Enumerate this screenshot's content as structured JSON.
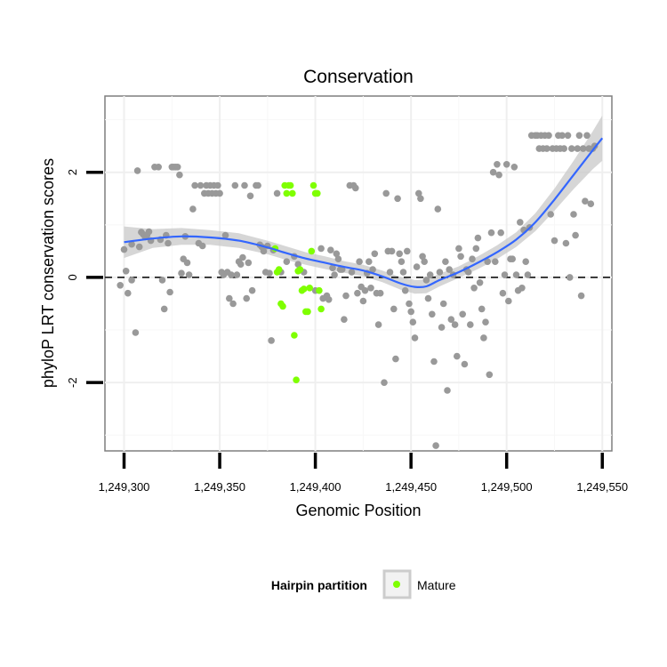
{
  "chart_data": {
    "type": "scatter",
    "title": "Conservation",
    "xlabel": "Genomic Position",
    "ylabel": "phyloP LRT conservation scores",
    "xlim": [
      1249290,
      1249555
    ],
    "ylim": [
      -3.3,
      3.45
    ],
    "x_ticks": [
      1249300,
      1249350,
      1249400,
      1249450,
      1249500,
      1249550
    ],
    "x_tick_labels": [
      "1,249,300",
      "1,249,350",
      "1,249,400",
      "1,249,450",
      "1,249,500",
      "1,249,550"
    ],
    "y_ticks": [
      -2,
      0,
      2
    ],
    "y_tick_labels": [
      "-2",
      "0",
      "2"
    ],
    "reference_line": {
      "y": 0,
      "style": "dashed"
    },
    "legend": {
      "title": "Hairpin partition",
      "position": "bottom",
      "entries": [
        {
          "label": "Mature",
          "color": "#7fff00"
        }
      ]
    },
    "colors": {
      "other": "#999999",
      "mature": "#7fff00",
      "smooth": "#3366ff",
      "band": "#c8c8c8"
    },
    "series": [
      {
        "name": "Other",
        "points": [
          [
            1249298,
            -0.15
          ],
          [
            1249300,
            0.53
          ],
          [
            1249301,
            0.12
          ],
          [
            1249302,
            -0.3
          ],
          [
            1249304,
            0.63
          ],
          [
            1249304,
            -0.05
          ],
          [
            1249306,
            -1.05
          ],
          [
            1249307,
            2.03
          ],
          [
            1249308,
            0.58
          ],
          [
            1249309,
            0.86
          ],
          [
            1249310,
            0.82
          ],
          [
            1249311,
            0.77
          ],
          [
            1249312,
            0.8
          ],
          [
            1249313,
            0.87
          ],
          [
            1249314,
            0.7
          ],
          [
            1249316,
            2.1
          ],
          [
            1249318,
            2.1
          ],
          [
            1249319,
            0.72
          ],
          [
            1249320,
            -0.05
          ],
          [
            1249321,
            -0.6
          ],
          [
            1249322,
            0.8
          ],
          [
            1249323,
            0.65
          ],
          [
            1249324,
            -0.28
          ],
          [
            1249325,
            2.1
          ],
          [
            1249326,
            2.1
          ],
          [
            1249327,
            2.1
          ],
          [
            1249328,
            2.1
          ],
          [
            1249329,
            1.95
          ],
          [
            1249330,
            0.08
          ],
          [
            1249331,
            0.35
          ],
          [
            1249332,
            0.78
          ],
          [
            1249333,
            0.28
          ],
          [
            1249334,
            0.05
          ],
          [
            1249336,
            1.3
          ],
          [
            1249337,
            1.75
          ],
          [
            1249339,
            0.65
          ],
          [
            1249340,
            1.75
          ],
          [
            1249341,
            0.6
          ],
          [
            1249342,
            1.6
          ],
          [
            1249343,
            1.75
          ],
          [
            1249344,
            1.6
          ],
          [
            1249345,
            1.75
          ],
          [
            1249346,
            1.6
          ],
          [
            1249347,
            1.75
          ],
          [
            1249348,
            1.6
          ],
          [
            1249349,
            1.75
          ],
          [
            1249350,
            1.6
          ],
          [
            1249351,
            0.1
          ],
          [
            1249352,
            0.05
          ],
          [
            1249353,
            0.8
          ],
          [
            1249354,
            0.1
          ],
          [
            1249355,
            -0.4
          ],
          [
            1249356,
            0.05
          ],
          [
            1249357,
            -0.5
          ],
          [
            1249358,
            1.75
          ],
          [
            1249359,
            0.05
          ],
          [
            1249360,
            0.3
          ],
          [
            1249361,
            0.25
          ],
          [
            1249362,
            0.38
          ],
          [
            1249363,
            1.75
          ],
          [
            1249364,
            -0.4
          ],
          [
            1249365,
            0.28
          ],
          [
            1249366,
            1.55
          ],
          [
            1249367,
            -0.25
          ],
          [
            1249369,
            1.75
          ],
          [
            1249370,
            1.75
          ],
          [
            1249371,
            0.62
          ],
          [
            1249372,
            0.58
          ],
          [
            1249373,
            0.5
          ],
          [
            1249374,
            0.1
          ],
          [
            1249375,
            0.6
          ],
          [
            1249376,
            0.08
          ],
          [
            1249377,
            -1.2
          ],
          [
            1249378,
            0.52
          ],
          [
            1249380,
            1.6
          ],
          [
            1249382,
            0.1
          ],
          [
            1249385,
            0.3
          ],
          [
            1249389,
            0.4
          ],
          [
            1249391,
            0.25
          ],
          [
            1249394,
            0.1
          ],
          [
            1249400,
            -0.25
          ],
          [
            1249403,
            0.55
          ],
          [
            1249404,
            -0.4
          ],
          [
            1249406,
            -0.35
          ],
          [
            1249407,
            -0.42
          ],
          [
            1249408,
            0.52
          ],
          [
            1249409,
            0.18
          ],
          [
            1249410,
            0.05
          ],
          [
            1249411,
            0.45
          ],
          [
            1249412,
            0.35
          ],
          [
            1249413,
            0.15
          ],
          [
            1249414,
            0.15
          ],
          [
            1249415,
            -0.8
          ],
          [
            1249416,
            -0.35
          ],
          [
            1249418,
            1.75
          ],
          [
            1249419,
            0.1
          ],
          [
            1249420,
            1.75
          ],
          [
            1249421,
            1.7
          ],
          [
            1249422,
            -0.3
          ],
          [
            1249423,
            0.3
          ],
          [
            1249424,
            -0.18
          ],
          [
            1249425,
            -0.45
          ],
          [
            1249426,
            -0.25
          ],
          [
            1249427,
            0.08
          ],
          [
            1249428,
            0.3
          ],
          [
            1249429,
            -0.2
          ],
          [
            1249430,
            0.15
          ],
          [
            1249431,
            0.45
          ],
          [
            1249432,
            -0.3
          ],
          [
            1249433,
            -0.9
          ],
          [
            1249434,
            -0.3
          ],
          [
            1249436,
            -2.0
          ],
          [
            1249437,
            1.6
          ],
          [
            1249438,
            0.5
          ],
          [
            1249439,
            0.1
          ],
          [
            1249440,
            0.5
          ],
          [
            1249441,
            -0.6
          ],
          [
            1249442,
            -1.55
          ],
          [
            1249443,
            1.5
          ],
          [
            1249444,
            0.45
          ],
          [
            1249445,
            0.3
          ],
          [
            1249446,
            0.1
          ],
          [
            1249447,
            -0.25
          ],
          [
            1249448,
            0.5
          ],
          [
            1249449,
            -0.5
          ],
          [
            1249450,
            -0.65
          ],
          [
            1249451,
            -0.85
          ],
          [
            1249452,
            -1.15
          ],
          [
            1249453,
            0.2
          ],
          [
            1249454,
            1.6
          ],
          [
            1249455,
            1.5
          ],
          [
            1249456,
            0.4
          ],
          [
            1249457,
            0.3
          ],
          [
            1249458,
            -0.05
          ],
          [
            1249459,
            -0.4
          ],
          [
            1249460,
            0.05
          ],
          [
            1249461,
            -0.7
          ],
          [
            1249462,
            -1.6
          ],
          [
            1249463,
            -3.2
          ],
          [
            1249464,
            1.3
          ],
          [
            1249465,
            0.1
          ],
          [
            1249466,
            -0.95
          ],
          [
            1249467,
            -0.5
          ],
          [
            1249468,
            0.3
          ],
          [
            1249469,
            -2.15
          ],
          [
            1249470,
            0.15
          ],
          [
            1249471,
            -0.8
          ],
          [
            1249472,
            0.05
          ],
          [
            1249473,
            -0.9
          ],
          [
            1249474,
            -1.5
          ],
          [
            1249475,
            0.55
          ],
          [
            1249476,
            0.4
          ],
          [
            1249477,
            -0.7
          ],
          [
            1249478,
            -1.65
          ],
          [
            1249479,
            0.15
          ],
          [
            1249480,
            0.1
          ],
          [
            1249481,
            -0.9
          ],
          [
            1249482,
            0.35
          ],
          [
            1249483,
            -0.2
          ],
          [
            1249484,
            0.55
          ],
          [
            1249485,
            0.75
          ],
          [
            1249486,
            -0.1
          ],
          [
            1249487,
            -0.6
          ],
          [
            1249488,
            -1.15
          ],
          [
            1249489,
            -0.85
          ],
          [
            1249490,
            0.3
          ],
          [
            1249491,
            -1.85
          ],
          [
            1249492,
            0.85
          ],
          [
            1249493,
            2.0
          ],
          [
            1249494,
            0.3
          ],
          [
            1249495,
            2.15
          ],
          [
            1249496,
            1.95
          ],
          [
            1249497,
            0.85
          ],
          [
            1249498,
            -0.3
          ],
          [
            1249499,
            0.05
          ],
          [
            1249500,
            2.15
          ],
          [
            1249501,
            -0.45
          ],
          [
            1249502,
            0.35
          ],
          [
            1249503,
            0.35
          ],
          [
            1249504,
            2.1
          ],
          [
            1249505,
            0.05
          ],
          [
            1249506,
            -0.25
          ],
          [
            1249507,
            1.05
          ],
          [
            1249508,
            -0.2
          ],
          [
            1249509,
            0.9
          ],
          [
            1249510,
            0.3
          ],
          [
            1249511,
            0.05
          ],
          [
            1249512,
            0.95
          ],
          [
            1249513,
            2.7
          ],
          [
            1249515,
            2.7
          ],
          [
            1249516,
            2.7
          ],
          [
            1249517,
            2.45
          ],
          [
            1249518,
            2.7
          ],
          [
            1249519,
            2.45
          ],
          [
            1249520,
            2.7
          ],
          [
            1249521,
            2.45
          ],
          [
            1249522,
            2.7
          ],
          [
            1249523,
            1.2
          ],
          [
            1249524,
            2.45
          ],
          [
            1249525,
            0.7
          ],
          [
            1249526,
            2.45
          ],
          [
            1249527,
            2.7
          ],
          [
            1249528,
            2.45
          ],
          [
            1249529,
            2.7
          ],
          [
            1249530,
            2.45
          ],
          [
            1249531,
            0.65
          ],
          [
            1249532,
            2.7
          ],
          [
            1249533,
            0.0
          ],
          [
            1249534,
            2.45
          ],
          [
            1249535,
            1.2
          ],
          [
            1249536,
            0.8
          ],
          [
            1249537,
            2.45
          ],
          [
            1249538,
            2.7
          ],
          [
            1249539,
            -0.35
          ],
          [
            1249540,
            2.45
          ],
          [
            1249541,
            1.45
          ],
          [
            1249542,
            2.7
          ],
          [
            1249543,
            2.45
          ],
          [
            1249544,
            1.4
          ],
          [
            1249545,
            2.45
          ],
          [
            1249546,
            2.5
          ]
        ]
      },
      {
        "name": "Mature",
        "points": [
          [
            1249379,
            0.55
          ],
          [
            1249380,
            0.1
          ],
          [
            1249381,
            0.15
          ],
          [
            1249382,
            -0.5
          ],
          [
            1249383,
            -0.55
          ],
          [
            1249384,
            1.75
          ],
          [
            1249385,
            1.6
          ],
          [
            1249386,
            1.75
          ],
          [
            1249387,
            1.75
          ],
          [
            1249388,
            1.6
          ],
          [
            1249389,
            -1.1
          ],
          [
            1249390,
            -1.95
          ],
          [
            1249391,
            0.12
          ],
          [
            1249392,
            0.15
          ],
          [
            1249393,
            -0.25
          ],
          [
            1249394,
            -0.22
          ],
          [
            1249395,
            -0.65
          ],
          [
            1249396,
            -0.65
          ],
          [
            1249397,
            -0.2
          ],
          [
            1249398,
            0.5
          ],
          [
            1249399,
            1.75
          ],
          [
            1249400,
            1.6
          ],
          [
            1249401,
            1.6
          ],
          [
            1249402,
            -0.25
          ],
          [
            1249403,
            -0.6
          ]
        ]
      }
    ],
    "smooth": {
      "x": [
        1249300,
        1249315,
        1249330,
        1249345,
        1249360,
        1249375,
        1249385,
        1249395,
        1249405,
        1249415,
        1249425,
        1249435,
        1249445,
        1249452,
        1249458,
        1249465,
        1249475,
        1249485,
        1249495,
        1249505,
        1249515,
        1249525,
        1249535,
        1249545,
        1249550
      ],
      "y": [
        0.67,
        0.74,
        0.78,
        0.76,
        0.7,
        0.57,
        0.46,
        0.36,
        0.28,
        0.2,
        0.13,
        0.02,
        -0.12,
        -0.18,
        -0.17,
        -0.05,
        0.1,
        0.28,
        0.48,
        0.72,
        1.05,
        1.48,
        1.95,
        2.42,
        2.65
      ],
      "ci_lower": [
        0.37,
        0.56,
        0.62,
        0.62,
        0.56,
        0.44,
        0.33,
        0.24,
        0.16,
        0.09,
        0.02,
        -0.09,
        -0.24,
        -0.31,
        -0.3,
        -0.17,
        -0.01,
        0.16,
        0.35,
        0.58,
        0.88,
        1.27,
        1.68,
        2.06,
        2.22
      ],
      "ci_upper": [
        0.97,
        0.92,
        0.94,
        0.9,
        0.84,
        0.7,
        0.59,
        0.48,
        0.4,
        0.31,
        0.24,
        0.13,
        0.0,
        -0.05,
        -0.04,
        0.07,
        0.21,
        0.4,
        0.61,
        0.86,
        1.22,
        1.69,
        2.22,
        2.78,
        3.08
      ]
    }
  }
}
